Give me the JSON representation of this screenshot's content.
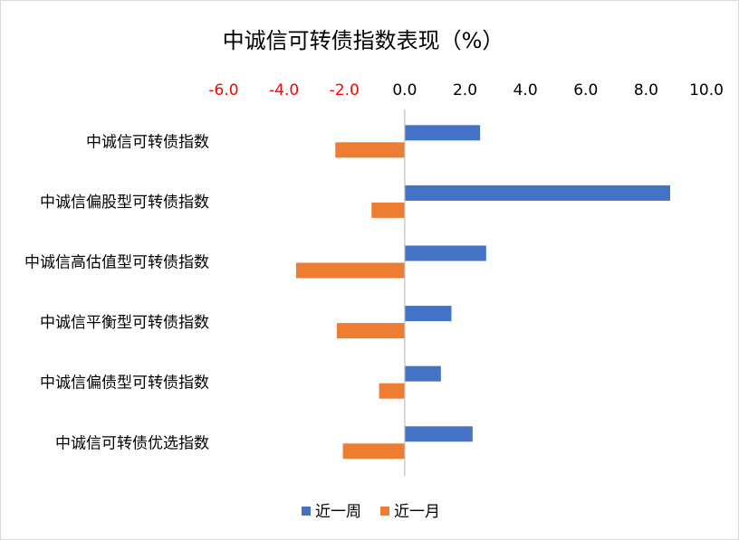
{
  "chart_data": {
    "type": "bar",
    "orientation": "horizontal",
    "title": "中诚信可转债指数表现（%）",
    "categories": [
      "中诚信可转债指数",
      "中诚信偏股型可转债指数",
      "中诚信高估值型可转债指数",
      "中诚信平衡型可转债指数",
      "中诚信偏债型可转债指数",
      "中诚信可转债优选指数"
    ],
    "series": [
      {
        "name": "近一周",
        "color": "#4472c4",
        "values": [
          2.5,
          8.8,
          2.7,
          1.55,
          1.2,
          2.25
        ]
      },
      {
        "name": "近一月",
        "color": "#ed7d31",
        "values": [
          -2.3,
          -1.1,
          -3.6,
          -2.25,
          -0.85,
          -2.05
        ]
      }
    ],
    "xlim": [
      -6.0,
      10.0
    ],
    "ticks": [
      "-6.0",
      "-4.0",
      "-2.0",
      "0.0",
      "2.0",
      "4.0",
      "6.0",
      "8.0",
      "10.0"
    ],
    "tick_values": [
      -6,
      -4,
      -2,
      0,
      2,
      4,
      6,
      8,
      10
    ],
    "negative_tick_color": "#ff0000",
    "positive_tick_color": "#000000",
    "axis_position": "top",
    "grid": false,
    "legend_position": "bottom"
  }
}
